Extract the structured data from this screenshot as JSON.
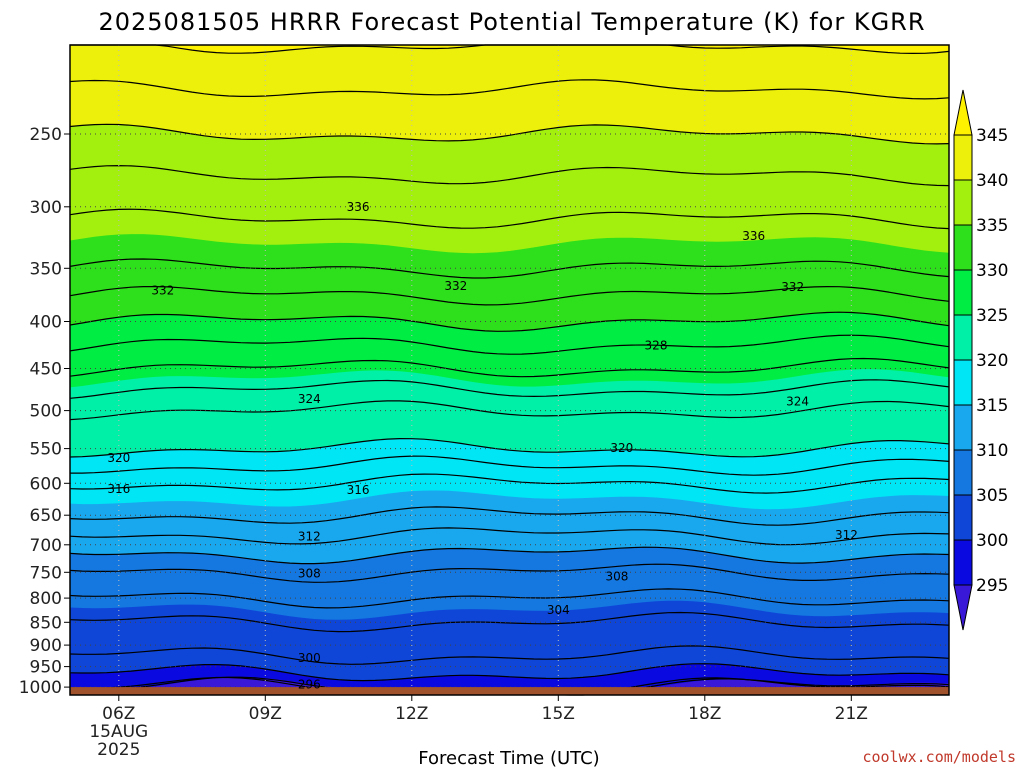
{
  "chart_data": {
    "type": "contour",
    "title": "2025081505 HRRR Forecast Potential Temperature (K) for KGRR",
    "xlabel": "Forecast Time (UTC)",
    "ylabel": "",
    "credit": "coolwx.com/models",
    "x_ticks": [
      {
        "hour": 6,
        "label": "06Z",
        "sub1": "15AUG",
        "sub2": "2025"
      },
      {
        "hour": 9,
        "label": "09Z"
      },
      {
        "hour": 12,
        "label": "12Z"
      },
      {
        "hour": 15,
        "label": "15Z"
      },
      {
        "hour": 18,
        "label": "18Z"
      },
      {
        "hour": 21,
        "label": "21Z"
      }
    ],
    "x_range_hours": [
      5.0,
      23.0
    ],
    "y_axis": "pressure (hPa), log scale, reversed",
    "y_ticks": [
      250,
      300,
      350,
      400,
      450,
      500,
      550,
      600,
      650,
      700,
      750,
      800,
      850,
      900,
      950,
      1000
    ],
    "y_range": [
      200,
      1020
    ],
    "grid": "dotted",
    "colorbar": {
      "levels": [
        295,
        300,
        305,
        310,
        315,
        320,
        325,
        330,
        335,
        340,
        345
      ],
      "colors": [
        "#3a18d8",
        "#0a0ae0",
        "#0f46d8",
        "#1478e0",
        "#19a8ee",
        "#00e6f5",
        "#00f0a8",
        "#00ee44",
        "#2ee01c",
        "#a3f00e",
        "#ecf00a",
        "#fff200"
      ],
      "extend": "both"
    },
    "theta_profile": [
      {
        "p": 200,
        "theta": 344
      },
      {
        "p": 250,
        "theta": 340
      },
      {
        "p": 300,
        "theta": 336.5
      },
      {
        "p": 350,
        "theta": 334
      },
      {
        "p": 400,
        "theta": 330
      },
      {
        "p": 450,
        "theta": 326
      },
      {
        "p": 500,
        "theta": 322
      },
      {
        "p": 550,
        "theta": 320
      },
      {
        "p": 600,
        "theta": 316
      },
      {
        "p": 650,
        "theta": 314
      },
      {
        "p": 700,
        "theta": 311
      },
      {
        "p": 750,
        "theta": 308
      },
      {
        "p": 800,
        "theta": 306
      },
      {
        "p": 850,
        "theta": 304
      },
      {
        "p": 900,
        "theta": 303
      },
      {
        "p": 950,
        "theta": 301
      },
      {
        "p": 1000,
        "theta": 298
      }
    ],
    "contour_labels": [
      {
        "value": "336",
        "hour": 10.9,
        "p": 300
      },
      {
        "value": "336",
        "hour": 19.0,
        "p": 323
      },
      {
        "value": "332",
        "hour": 6.9,
        "p": 370
      },
      {
        "value": "332",
        "hour": 12.9,
        "p": 366
      },
      {
        "value": "332",
        "hour": 19.8,
        "p": 367
      },
      {
        "value": "328",
        "hour": 17.0,
        "p": 425
      },
      {
        "value": "324",
        "hour": 9.9,
        "p": 486
      },
      {
        "value": "324",
        "hour": 19.9,
        "p": 489
      },
      {
        "value": "320",
        "hour": 6.0,
        "p": 563
      },
      {
        "value": "320",
        "hour": 16.3,
        "p": 549
      },
      {
        "value": "316",
        "hour": 6.0,
        "p": 609
      },
      {
        "value": "316",
        "hour": 10.9,
        "p": 610
      },
      {
        "value": "312",
        "hour": 9.9,
        "p": 686
      },
      {
        "value": "312",
        "hour": 20.9,
        "p": 683
      },
      {
        "value": "308",
        "hour": 9.9,
        "p": 752
      },
      {
        "value": "308",
        "hour": 16.2,
        "p": 758
      },
      {
        "value": "304",
        "hour": 15.0,
        "p": 824
      },
      {
        "value": "300",
        "hour": 9.9,
        "p": 930
      },
      {
        "value": "296",
        "hour": 9.9,
        "p": 993
      }
    ]
  }
}
